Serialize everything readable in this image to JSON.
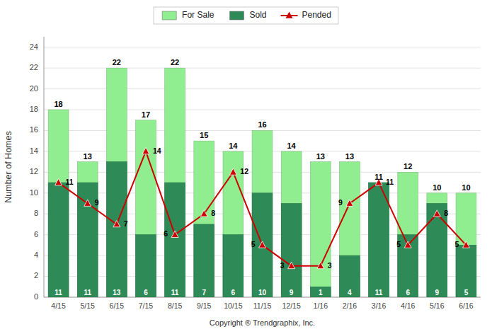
{
  "chart_data": {
    "type": "bar",
    "categories": [
      "4/15",
      "5/15",
      "6/15",
      "7/15",
      "8/15",
      "9/15",
      "10/15",
      "11/15",
      "12/15",
      "1/16",
      "2/16",
      "3/16",
      "4/16",
      "5/16",
      "6/16"
    ],
    "series": [
      {
        "name": "For Sale",
        "type": "bar",
        "color": "#90EE90",
        "values": [
          18,
          13,
          22,
          17,
          22,
          15,
          14,
          16,
          14,
          13,
          13,
          11,
          12,
          10,
          10
        ]
      },
      {
        "name": "Sold",
        "type": "bar",
        "color": "#2E8B57",
        "values": [
          11,
          11,
          13,
          6,
          11,
          7,
          6,
          10,
          9,
          1,
          4,
          11,
          6,
          9,
          5
        ]
      },
      {
        "name": "Pended",
        "type": "line",
        "color": "#CC0000",
        "marker": "triangle",
        "values": [
          11,
          9,
          7,
          14,
          6,
          8,
          12,
          5,
          3,
          3,
          9,
          11,
          5,
          8,
          5
        ]
      }
    ],
    "ylabel": "Number of Homes",
    "xlabel": "Copyright ® Trendgraphix, Inc.",
    "ylim": [
      0,
      25
    ],
    "yticks": [
      0,
      2,
      4,
      6,
      8,
      10,
      12,
      14,
      16,
      18,
      20,
      22,
      24
    ],
    "grid": true,
    "legend": "top",
    "stacked": false,
    "data_labels": true
  }
}
